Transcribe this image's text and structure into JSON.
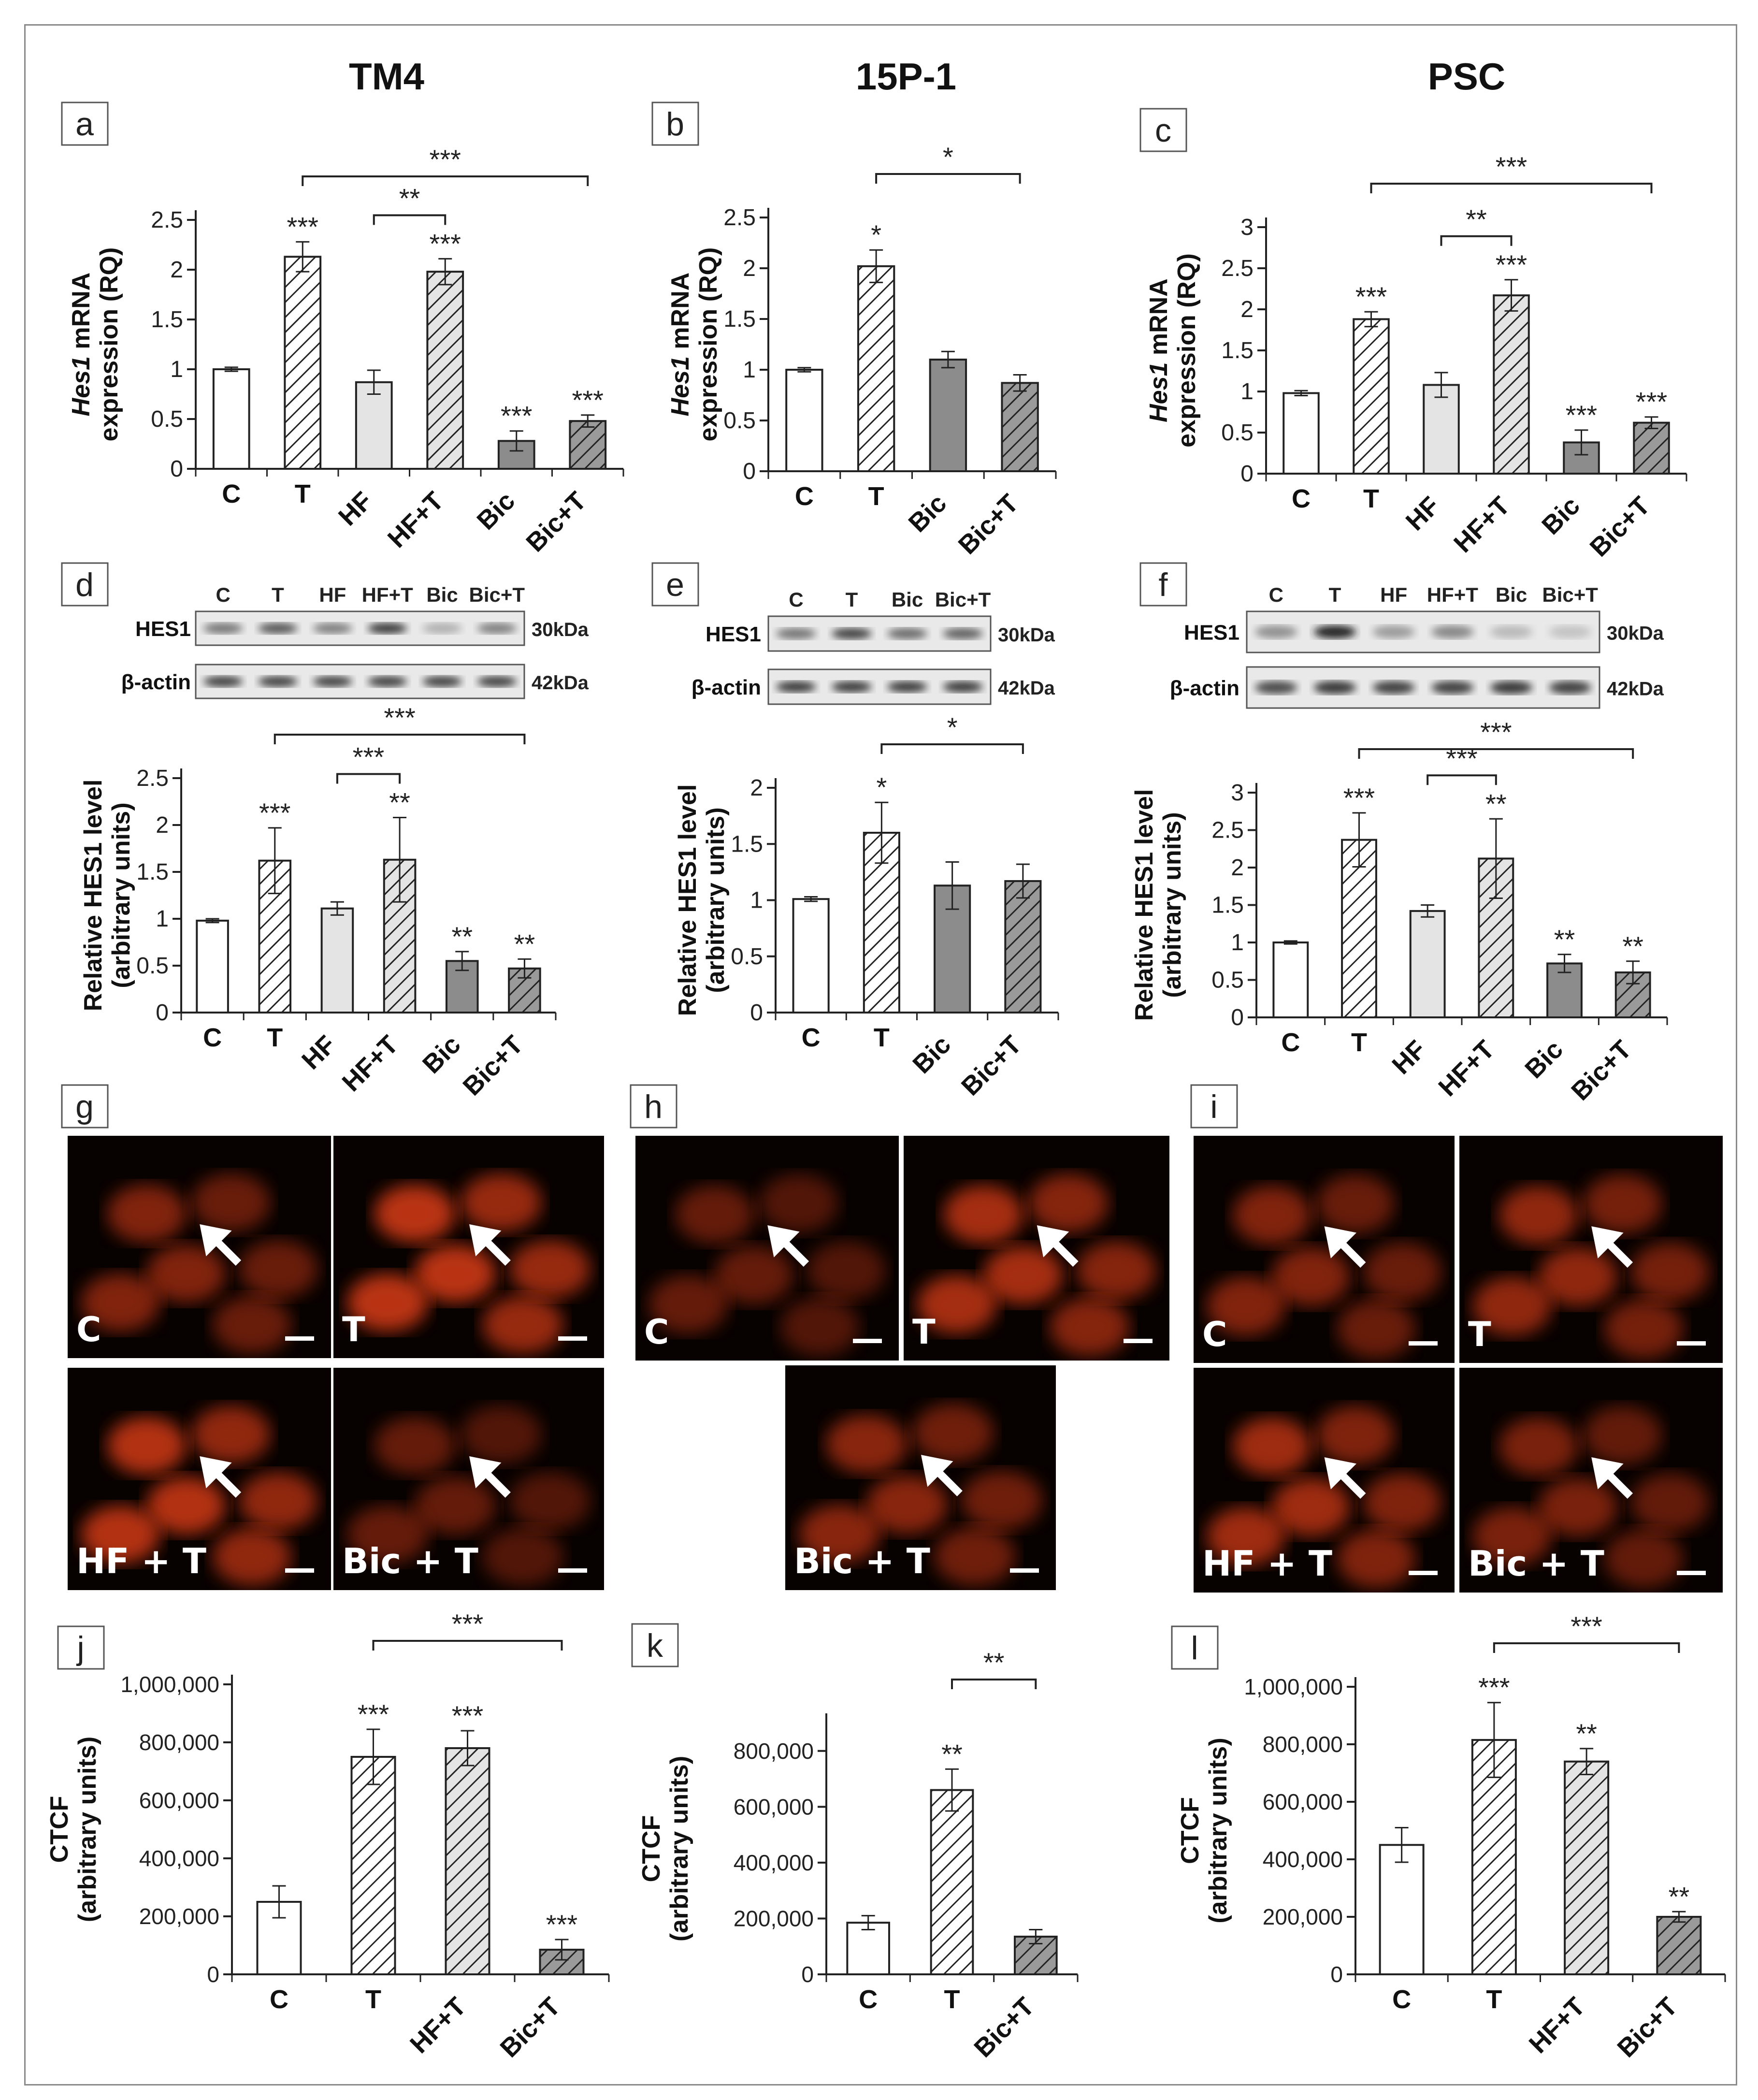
{
  "columns": [
    "TM4",
    "15P-1",
    "PSC"
  ],
  "panel_letters": [
    "a",
    "b",
    "c",
    "d",
    "e",
    "f",
    "g",
    "h",
    "i",
    "j",
    "k",
    "l"
  ],
  "colors": {
    "open": "#ffffff",
    "light": "#e4e4e4",
    "mid": "#b6b6b6",
    "dark": "#8c8c8c",
    "ink": "#222222",
    "frame": "#8a8a8a",
    "micro_bg": "#070100",
    "micro_cell": "#d23a14"
  },
  "chart_data": [
    {
      "id": "a",
      "type": "bar",
      "ylabel_italic": "Hes1",
      "ylabel_rest": " mRNA",
      "ylabel_line2": "expression (RQ)",
      "ylim": [
        0,
        2.5
      ],
      "yticks": [
        "0",
        "0.5",
        "1",
        "1.5",
        "2",
        "2.5"
      ],
      "categories": [
        "C",
        "T",
        "HF",
        "HF+T",
        "Bic",
        "Bic+T"
      ],
      "values": [
        1.0,
        2.13,
        0.87,
        1.98,
        0.28,
        0.48
      ],
      "errors": [
        0.02,
        0.15,
        0.12,
        0.13,
        0.1,
        0.06
      ],
      "fills": [
        "open",
        "hatch",
        "light",
        "hatch-light",
        "dark",
        "hatch-dark"
      ],
      "stars": [
        "",
        "***",
        "",
        "***",
        "***",
        "***"
      ],
      "brackets": [
        {
          "from": 1,
          "to": 5,
          "label": "***"
        },
        {
          "from": 2,
          "to": 3,
          "label": "**"
        }
      ]
    },
    {
      "id": "b",
      "type": "bar",
      "ylabel_italic": "Hes1",
      "ylabel_rest": " mRNA",
      "ylabel_line2": "expression (RQ)",
      "ylim": [
        0,
        2.5
      ],
      "yticks": [
        "0",
        "0.5",
        "1",
        "1.5",
        "2",
        "2.5"
      ],
      "categories": [
        "C",
        "T",
        "Bic",
        "Bic+T"
      ],
      "values": [
        1.0,
        2.02,
        1.1,
        0.87
      ],
      "errors": [
        0.02,
        0.16,
        0.08,
        0.08
      ],
      "fills": [
        "open",
        "hatch",
        "dark",
        "hatch-dark"
      ],
      "stars": [
        "",
        "*",
        "",
        ""
      ],
      "brackets": [
        {
          "from": 1,
          "to": 3,
          "label": "*"
        }
      ]
    },
    {
      "id": "c",
      "type": "bar",
      "ylabel_italic": "Hes1",
      "ylabel_rest": " mRNA",
      "ylabel_line2": "expression (RQ)",
      "ylim": [
        0,
        3
      ],
      "yticks": [
        "0",
        "0.5",
        "1",
        "1.5",
        "2",
        "2.5",
        "3"
      ],
      "categories": [
        "C",
        "T",
        "HF",
        "HF+T",
        "Bic",
        "Bic+T"
      ],
      "values": [
        0.98,
        1.88,
        1.08,
        2.17,
        0.38,
        0.62
      ],
      "errors": [
        0.03,
        0.09,
        0.15,
        0.19,
        0.15,
        0.07
      ],
      "fills": [
        "open",
        "hatch",
        "light",
        "hatch-light",
        "dark",
        "hatch-dark"
      ],
      "stars": [
        "",
        "***",
        "",
        "***",
        "***",
        "***"
      ],
      "brackets": [
        {
          "from": 1,
          "to": 5,
          "label": "***"
        },
        {
          "from": 2,
          "to": 3,
          "label": "**"
        }
      ]
    },
    {
      "id": "d",
      "type": "bar",
      "ylabel_italic": "",
      "ylabel_rest": "Relative HES1 level",
      "ylabel_line2": "(arbitrary units)",
      "ylim": [
        0,
        2.5
      ],
      "yticks": [
        "0",
        "0.5",
        "1",
        "1.5",
        "2",
        "2.5"
      ],
      "categories": [
        "C",
        "T",
        "HF",
        "HF+T",
        "Bic",
        "Bic+T"
      ],
      "values": [
        0.98,
        1.62,
        1.11,
        1.63,
        0.55,
        0.47
      ],
      "errors": [
        0.02,
        0.35,
        0.07,
        0.45,
        0.1,
        0.1
      ],
      "fills": [
        "open",
        "hatch",
        "light",
        "hatch-light",
        "dark",
        "hatch-dark"
      ],
      "stars": [
        "",
        "***",
        "",
        "**",
        "**",
        "**"
      ],
      "brackets": [
        {
          "from": 1,
          "to": 5,
          "label": "***"
        },
        {
          "from": 2,
          "to": 3,
          "label": "***"
        }
      ]
    },
    {
      "id": "e",
      "type": "bar",
      "ylabel_italic": "",
      "ylabel_rest": "Relative HES1 level",
      "ylabel_line2": "(arbitrary units)",
      "ylim": [
        0,
        2
      ],
      "yticks": [
        "0",
        "0.5",
        "1",
        "1.5",
        "2"
      ],
      "categories": [
        "C",
        "T",
        "Bic",
        "Bic+T"
      ],
      "values": [
        1.01,
        1.6,
        1.13,
        1.17
      ],
      "errors": [
        0.02,
        0.27,
        0.21,
        0.15
      ],
      "fills": [
        "open",
        "hatch",
        "dark",
        "hatch-dark"
      ],
      "stars": [
        "",
        "*",
        "",
        ""
      ],
      "brackets": [
        {
          "from": 1,
          "to": 3,
          "label": "*"
        }
      ]
    },
    {
      "id": "f",
      "type": "bar",
      "ylabel_italic": "",
      "ylabel_rest": "Relative HES1 level",
      "ylabel_line2": "(arbitrary units)",
      "ylim": [
        0,
        3
      ],
      "yticks": [
        "0",
        "0.5",
        "1",
        "1.5",
        "2",
        "2.5",
        "3"
      ],
      "categories": [
        "C",
        "T",
        "HF",
        "HF+T",
        "Bic",
        "Bic+T"
      ],
      "values": [
        1.0,
        2.37,
        1.42,
        2.12,
        0.72,
        0.6
      ],
      "errors": [
        0.02,
        0.36,
        0.08,
        0.53,
        0.12,
        0.15
      ],
      "fills": [
        "open",
        "hatch",
        "light",
        "hatch-light",
        "dark",
        "hatch-dark"
      ],
      "stars": [
        "",
        "***",
        "",
        "**",
        "**",
        "**"
      ],
      "brackets": [
        {
          "from": 1,
          "to": 5,
          "label": "***"
        },
        {
          "from": 2,
          "to": 3,
          "label": "***"
        }
      ]
    },
    {
      "id": "j",
      "type": "bar",
      "ylabel_italic": "",
      "ylabel_rest": "CTCF",
      "ylabel_line2": "(arbitrary units)",
      "ylim": [
        0,
        1000000
      ],
      "yticks": [
        "0",
        "200,000",
        "400,000",
        "600,000",
        "800,000",
        "1,000,000"
      ],
      "categories": [
        "C",
        "T",
        "HF+T",
        "Bic+T"
      ],
      "values": [
        250000,
        750000,
        780000,
        85000
      ],
      "errors": [
        55000,
        95000,
        60000,
        35000
      ],
      "fills": [
        "open",
        "hatch",
        "hatch-light",
        "hatch-dark"
      ],
      "stars": [
        "",
        "***",
        "***",
        "***"
      ],
      "brackets": [
        {
          "from": 1,
          "to": 3,
          "label": "***"
        }
      ]
    },
    {
      "id": "k",
      "type": "bar",
      "ylabel_italic": "",
      "ylabel_rest": "CTCF",
      "ylabel_line2": "(arbitrary units)",
      "ylim": [
        0,
        900000
      ],
      "yticks": [
        "0",
        "200,000",
        "400,000",
        "600,000",
        "800,000"
      ],
      "categories": [
        "C",
        "T",
        "Bic+T"
      ],
      "values": [
        185000,
        660000,
        135000
      ],
      "errors": [
        25000,
        75000,
        25000
      ],
      "fills": [
        "open",
        "hatch",
        "hatch-dark"
      ],
      "stars": [
        "",
        "**",
        ""
      ],
      "brackets": [
        {
          "from": 1,
          "to": 2,
          "label": "**"
        }
      ]
    },
    {
      "id": "l",
      "type": "bar",
      "ylabel_italic": "",
      "ylabel_rest": "CTCF",
      "ylabel_line2": "(arbitrary units)",
      "ylim": [
        0,
        1000000
      ],
      "yticks": [
        "0",
        "200,000",
        "400,000",
        "600,000",
        "800,000",
        "1,000,000"
      ],
      "categories": [
        "C",
        "T",
        "HF+T",
        "Bic+T"
      ],
      "values": [
        450000,
        815000,
        740000,
        200000
      ],
      "errors": [
        60000,
        130000,
        45000,
        18000
      ],
      "fills": [
        "open",
        "hatch",
        "hatch-light",
        "hatch-dark"
      ],
      "stars": [
        "",
        "***",
        "**",
        "**"
      ],
      "brackets": [
        {
          "from": 1,
          "to": 3,
          "label": "***"
        }
      ]
    }
  ],
  "blots": [
    {
      "id": "d",
      "lanes": [
        "C",
        "T",
        "HF",
        "HF+T",
        "Bic",
        "Bic+T"
      ],
      "rows": [
        "HES1",
        "β-actin"
      ],
      "sizes": [
        "30kDa",
        "42kDa"
      ],
      "hes1": [
        0.55,
        0.7,
        0.5,
        0.85,
        0.25,
        0.5
      ],
      "actin": [
        0.8,
        0.8,
        0.8,
        0.8,
        0.8,
        0.8
      ]
    },
    {
      "id": "e",
      "lanes": [
        "C",
        "T",
        "Bic",
        "Bic+T"
      ],
      "rows": [
        "HES1",
        "β-actin"
      ],
      "sizes": [
        "30kDa",
        "42kDa"
      ],
      "hes1": [
        0.55,
        0.8,
        0.6,
        0.65
      ],
      "actin": [
        0.85,
        0.85,
        0.85,
        0.85
      ]
    },
    {
      "id": "f",
      "lanes": [
        "C",
        "T",
        "HF",
        "HF+T",
        "Bic",
        "Bic+T"
      ],
      "rows": [
        "HES1",
        "β-actin"
      ],
      "sizes": [
        "30kDa",
        "42kDa"
      ],
      "hes1": [
        0.4,
        0.95,
        0.35,
        0.45,
        0.2,
        0.15
      ],
      "actin": [
        0.75,
        0.85,
        0.8,
        0.8,
        0.85,
        0.8
      ]
    }
  ],
  "micrographs": [
    {
      "id": "g",
      "tiles": [
        "C",
        "T",
        "HF + T",
        "Bic + T"
      ],
      "brightness": [
        0.5,
        0.9,
        0.85,
        0.3
      ]
    },
    {
      "id": "h",
      "tiles": [
        "C",
        "T",
        "Bic + T"
      ],
      "brightness": [
        0.3,
        0.75,
        0.55
      ]
    },
    {
      "id": "i",
      "tiles": [
        "C",
        "T",
        "HF + T",
        "Bic + T"
      ],
      "brightness": [
        0.5,
        0.6,
        0.7,
        0.45
      ]
    }
  ]
}
